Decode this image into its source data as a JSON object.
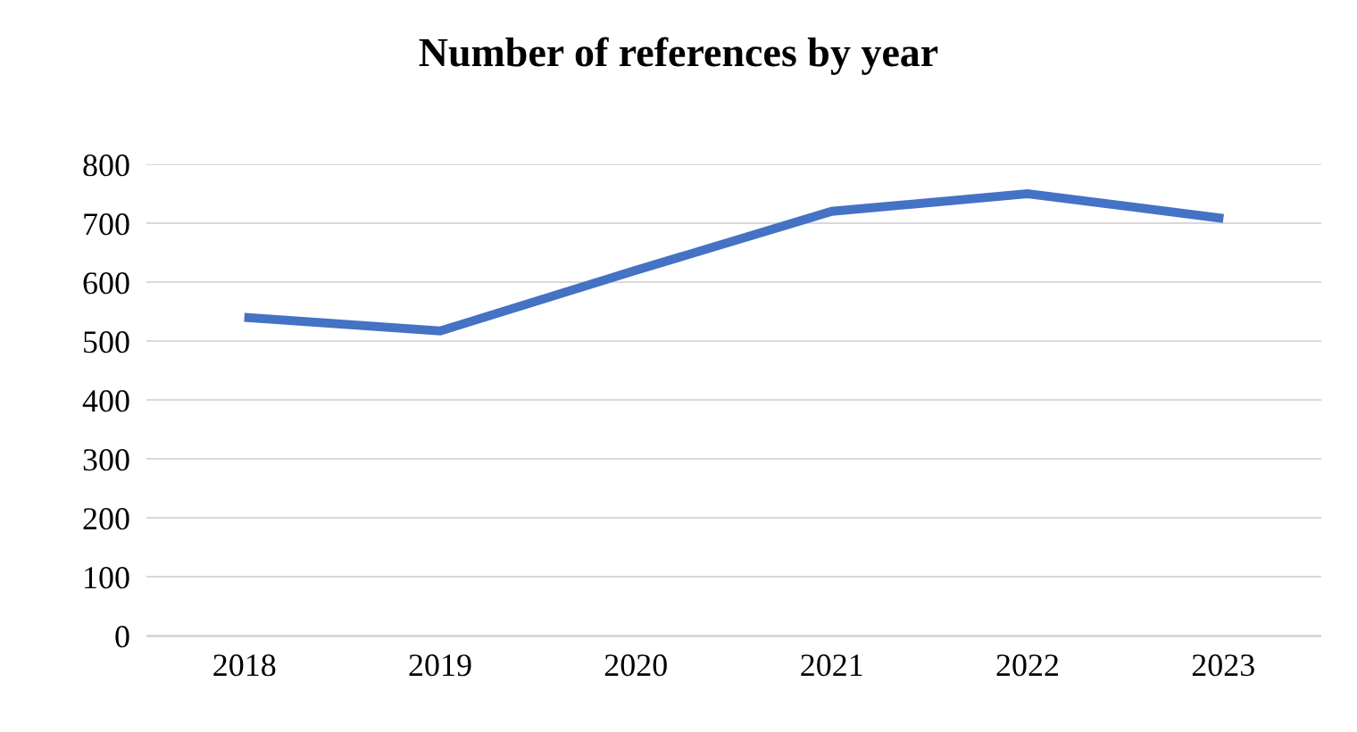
{
  "chart_data": {
    "type": "line",
    "title": "Number of references by year",
    "categories": [
      "2018",
      "2019",
      "2020",
      "2021",
      "2022",
      "2023"
    ],
    "series": [
      {
        "color": "#4472c4",
        "values": [
          540,
          517,
          620,
          720,
          750,
          708
        ]
      }
    ],
    "ylim": [
      0,
      800
    ],
    "yticks": [
      0,
      100,
      200,
      300,
      400,
      500,
      600,
      700,
      800
    ],
    "grid": "y",
    "marker": "none",
    "line_style": "solid"
  }
}
